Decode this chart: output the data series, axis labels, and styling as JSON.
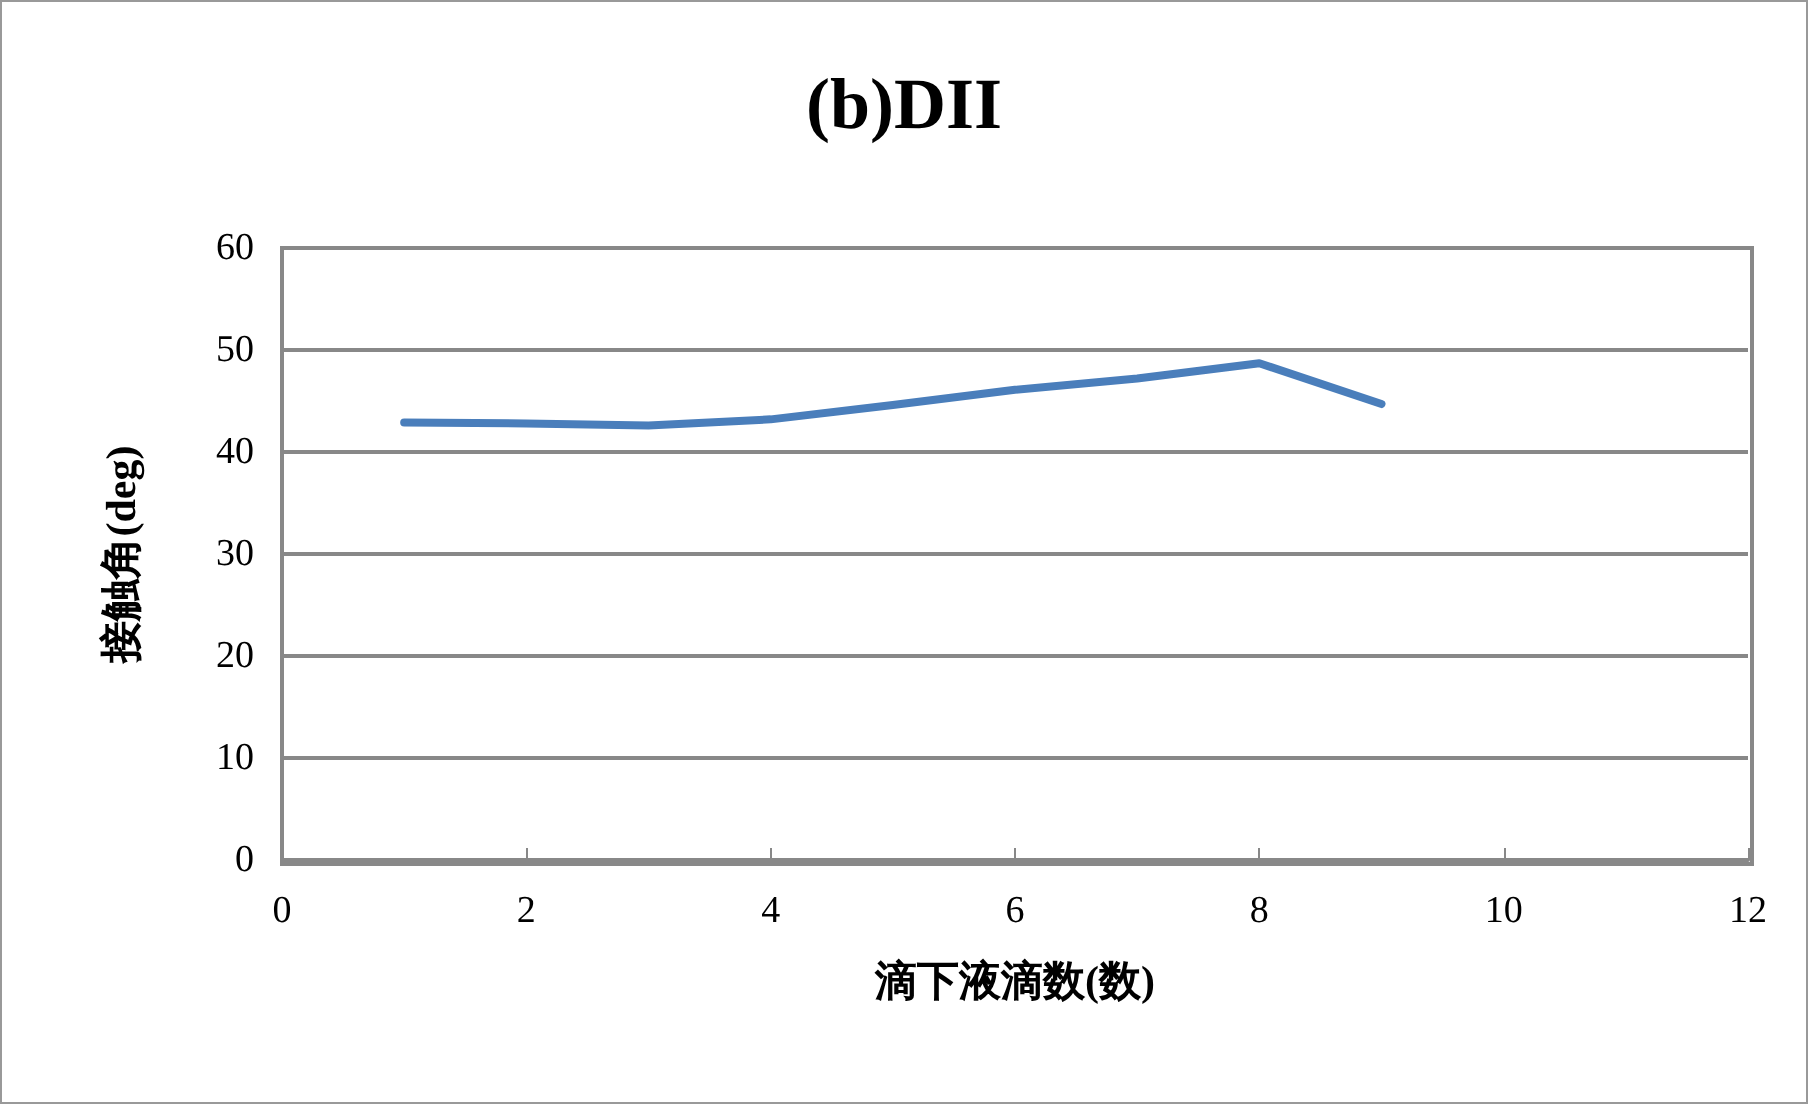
{
  "chart_data": {
    "type": "line",
    "title": "(b)DII",
    "xlabel": "滴下液滴数(数)",
    "ylabel": "接触角(deg)",
    "x": [
      1,
      2,
      3,
      4,
      5,
      6,
      7,
      8,
      9
    ],
    "series": [
      {
        "color": "#4a7ebb",
        "values": [
          42.9,
          42.8,
          42.6,
          43.2,
          44.6,
          46.1,
          47.2,
          48.7,
          44.7
        ]
      }
    ],
    "xlim": [
      0,
      12
    ],
    "xticks": [
      0,
      2,
      4,
      6,
      8,
      10,
      12
    ],
    "ylim": [
      0,
      60
    ],
    "yticks": [
      0,
      10,
      20,
      30,
      40,
      50,
      60
    ],
    "grid": "y",
    "marker": "none",
    "line_style": "solid"
  }
}
